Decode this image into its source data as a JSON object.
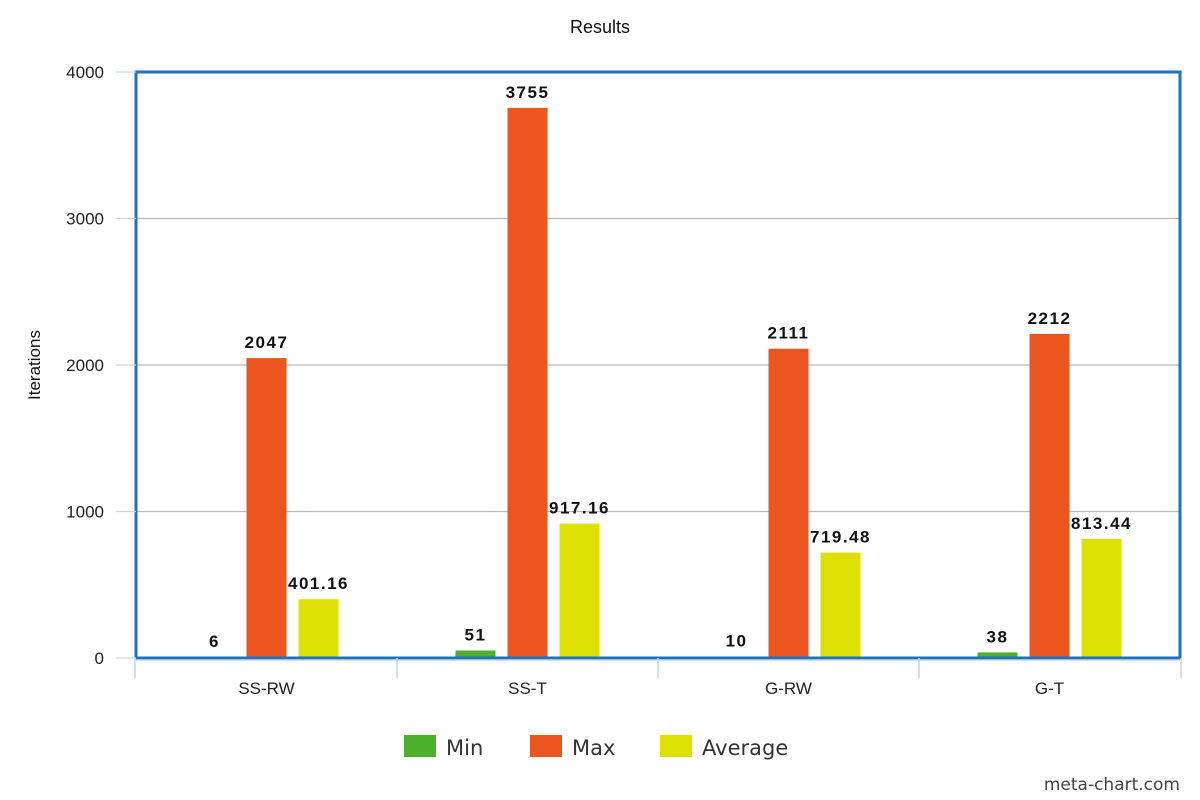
{
  "chart_data": {
    "type": "bar",
    "title": "Results",
    "xlabel": "",
    "ylabel": "Iterations",
    "categories": [
      "SS-RW",
      "SS-T",
      "G-RW",
      "G-T"
    ],
    "series": [
      {
        "name": "Min",
        "color": "#4caf2e",
        "values": [
          6,
          51,
          10,
          38
        ],
        "labels": [
          "6",
          "51",
          "10",
          "38"
        ]
      },
      {
        "name": "Max",
        "color": "#eb5520",
        "values": [
          2047,
          3755,
          2111,
          2212
        ],
        "labels": [
          "2047",
          "3755",
          "2111",
          "2212"
        ]
      },
      {
        "name": "Average",
        "color": "#dde000",
        "values": [
          401.16,
          917.16,
          719.48,
          813.44
        ],
        "labels": [
          "401.16",
          "917.16",
          "719.48",
          "813.44"
        ]
      }
    ],
    "ylim": [
      0,
      4000
    ],
    "yticks": [
      0,
      1000,
      2000,
      3000,
      4000
    ],
    "grid": true,
    "legend": "bottom-center",
    "frame_color": "#1e73be"
  },
  "watermark": "meta-chart.com"
}
